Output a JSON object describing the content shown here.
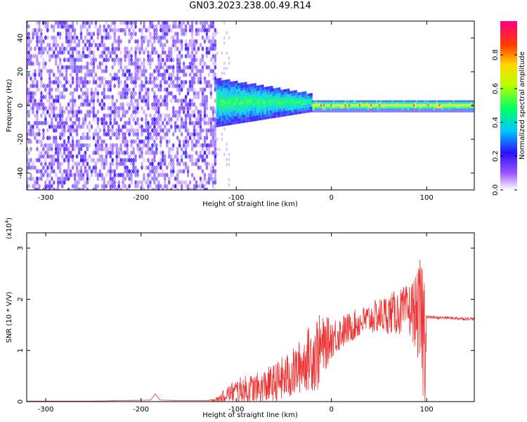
{
  "title": "GN03.2023.238.00.49.R14",
  "chart_data": [
    {
      "type": "heatmap",
      "xlabel": "Height of straight line (km)",
      "ylabel": "Frequency (Hz)",
      "xlim": [
        -320,
        150
      ],
      "ylim": [
        -50,
        50
      ],
      "xticks": [
        -300,
        -200,
        -100,
        0,
        100
      ],
      "yticks": [
        -40,
        -20,
        0,
        20,
        40
      ],
      "colorbar": {
        "label": "Normalized spectral amplitude",
        "range": [
          0,
          1
        ],
        "ticks": [
          0.0,
          0.2,
          0.4,
          0.6,
          0.8
        ]
      },
      "regions": [
        {
          "x": [
            -320,
            -120
          ],
          "freq_band": [
            -50,
            50
          ],
          "amplitude": [
            0.05,
            0.2
          ]
        },
        {
          "x": [
            -120,
            -20
          ],
          "freq_band": [
            -10,
            12
          ],
          "amplitude": [
            0.2,
            0.5
          ]
        },
        {
          "x": [
            -20,
            150
          ],
          "freq_band": [
            -2,
            2
          ],
          "amplitude": [
            0.4,
            0.95
          ]
        }
      ],
      "grid": false
    },
    {
      "type": "line",
      "xlabel": "Height of straight line (km)",
      "ylabel": "SNR (10 * V/V)",
      "y_scale_label": "(x10",
      "y_scale_exp": "4",
      "y_scale_close": ")",
      "xlim": [
        -320,
        150
      ],
      "ylim": [
        0,
        3.3
      ],
      "xticks": [
        -300,
        -200,
        -100,
        0,
        100
      ],
      "yticks": [
        0,
        1,
        2,
        3
      ],
      "series": [
        {
          "color": "#ee3333",
          "x": [
            -320,
            -250,
            -190,
            -185,
            -180,
            -160,
            -130,
            -120,
            -110,
            -100,
            -90,
            -80,
            -70,
            -60,
            -50,
            -40,
            -30,
            -20,
            -15,
            -10,
            -5,
            0,
            10,
            20,
            30,
            40,
            50,
            60,
            70,
            80,
            85,
            90,
            95,
            98,
            100,
            102,
            105,
            110,
            120,
            130,
            140,
            150
          ],
          "y": [
            0.01,
            0.01,
            0.03,
            0.15,
            0.03,
            0.02,
            0.02,
            0.04,
            0.15,
            0.2,
            0.22,
            0.25,
            0.3,
            0.35,
            0.45,
            0.55,
            0.75,
            0.9,
            0.95,
            1.05,
            1.15,
            1.25,
            1.35,
            1.45,
            1.55,
            1.62,
            1.68,
            1.72,
            1.75,
            1.78,
            1.8,
            1.7,
            1.6,
            1.2,
            1.65,
            1.65,
            1.65,
            1.64,
            1.64,
            1.63,
            1.62,
            1.62
          ],
          "noise": [
            0.0,
            0.0,
            0.0,
            0.0,
            0.0,
            0.0,
            0.0,
            0.05,
            0.15,
            0.25,
            0.3,
            0.3,
            0.35,
            0.4,
            0.45,
            0.5,
            0.55,
            0.7,
            0.8,
            0.6,
            0.5,
            0.4,
            0.35,
            0.3,
            0.3,
            0.3,
            0.35,
            0.4,
            0.45,
            0.5,
            0.6,
            0.8,
            1.4,
            1.6,
            0.03,
            0.03,
            0.03,
            0.03,
            0.03,
            0.03,
            0.03,
            0.03
          ]
        }
      ],
      "grid": false
    }
  ]
}
